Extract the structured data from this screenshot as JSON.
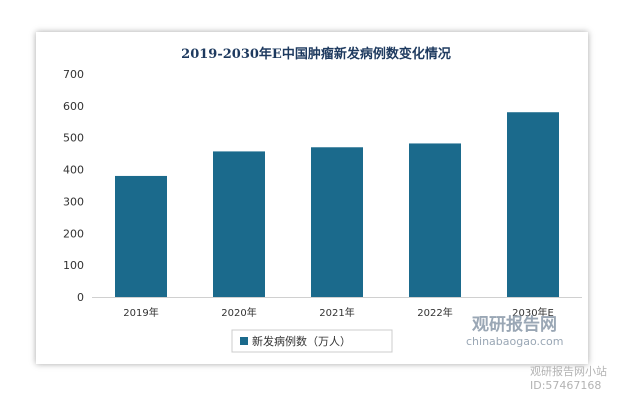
{
  "chart_data": {
    "type": "bar",
    "title": "2019-2030年E中国肿瘤新发病例数变化情况",
    "categories": [
      "2019年",
      "2020年",
      "2021年",
      "2022年",
      "2030年E"
    ],
    "series": [
      {
        "name": "新发病例数（万人）",
        "values": [
          380,
          457,
          470,
          482,
          580
        ]
      }
    ],
    "ylim": [
      0,
      700
    ],
    "yticks": [
      0,
      100,
      200,
      300,
      400,
      500,
      600,
      700
    ],
    "grid": false,
    "legend": "bottom",
    "colors": {
      "bar": "#1b6a8c"
    }
  },
  "watermark": {
    "brand_cn": "观研报告网",
    "brand_en": "chinabaogao.com",
    "site": "观研报告网小站",
    "id": "ID:57467168"
  }
}
